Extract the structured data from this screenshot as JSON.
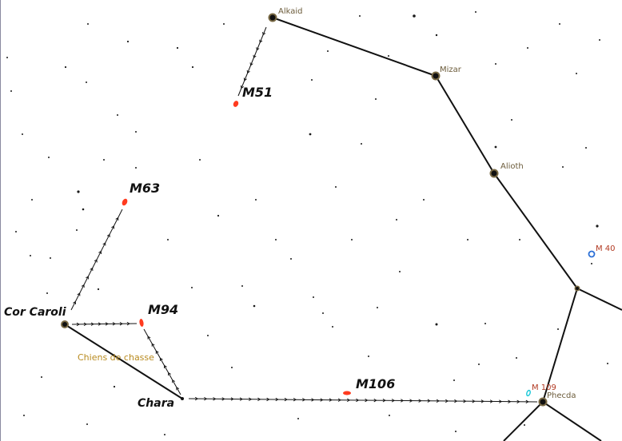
{
  "stars": {
    "alkaid": "Alkaid",
    "mizar": "Mizar",
    "alioth": "Alioth",
    "phecda": "Phecda",
    "cor_caroli": "Cor Caroli",
    "chara": "Chara"
  },
  "messier": {
    "m51": "M51",
    "m63": "M63",
    "m94": "M94",
    "m106": "M106",
    "m40": "M 40",
    "m109": "M 109"
  },
  "constellation": "Chiens de chasse",
  "colors": {
    "background": "#ffffff",
    "lines": "#111111",
    "galaxy": "#ff3b1f",
    "star_label": "#6b5b3a",
    "constellation_label": "#b88a1e",
    "m40_marker": "#2b6fd6",
    "m109_marker": "#19c7d8"
  }
}
